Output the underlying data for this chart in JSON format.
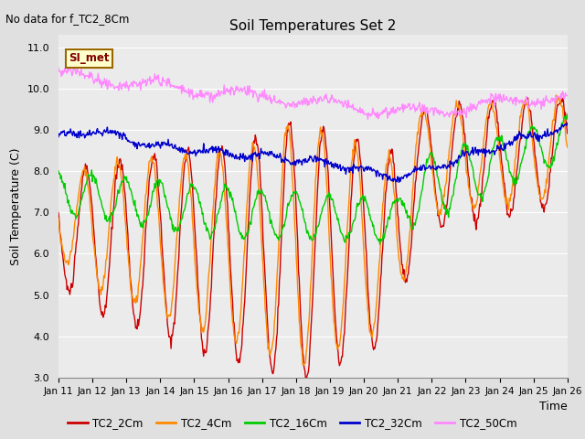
{
  "title": "Soil Temperatures Set 2",
  "subtitle": "No data for f_TC2_8Cm",
  "ylabel": "Soil Temperature (C)",
  "xlabel": "Time",
  "ylim": [
    3.0,
    11.3
  ],
  "yticks": [
    3.0,
    4.0,
    5.0,
    6.0,
    7.0,
    8.0,
    9.0,
    10.0,
    11.0
  ],
  "x_labels": [
    "Jan 11",
    "Jan 12",
    "Jan 13",
    "Jan 14",
    "Jan 15",
    "Jan 16",
    "Jan 17",
    "Jan 18",
    "Jan 19",
    "Jan 20",
    "Jan 21",
    "Jan 22",
    "Jan 23",
    "Jan 24",
    "Jan 25",
    "Jan 26"
  ],
  "series_colors": {
    "TC2_2Cm": "#cc0000",
    "TC2_4Cm": "#ff8800",
    "TC2_16Cm": "#00cc00",
    "TC2_32Cm": "#0000cc",
    "TC2_50Cm": "#ff88ff"
  },
  "legend_label": "SI_met",
  "legend_box_color": "#ffffcc",
  "legend_box_edge": "#996600",
  "bg_color": "#e0e0e0",
  "plot_bg_color": "#ebebeb",
  "grid_color": "#ffffff",
  "n_points": 720,
  "figsize": [
    6.4,
    4.8
  ],
  "dpi": 100
}
